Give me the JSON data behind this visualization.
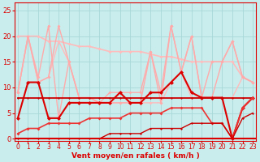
{
  "xlabel": "Vent moyen/en rafales ( km/h )",
  "xlim": [
    -0.3,
    23.3
  ],
  "ylim": [
    -0.5,
    26.5
  ],
  "yticks": [
    0,
    5,
    10,
    15,
    20,
    25
  ],
  "xticks": [
    0,
    1,
    2,
    3,
    4,
    5,
    6,
    7,
    8,
    9,
    10,
    11,
    12,
    13,
    14,
    15,
    16,
    17,
    18,
    19,
    20,
    21,
    22,
    23
  ],
  "bg_color": "#c9eded",
  "grid_color": "#a8d8d8",
  "axis_color": "#dd0000",
  "lines": [
    {
      "x": [
        0,
        1,
        2,
        3,
        4,
        5,
        6,
        7,
        8,
        9,
        10,
        11,
        12,
        13,
        14,
        15,
        16,
        17,
        18,
        19,
        20,
        21,
        22,
        23
      ],
      "y": [
        20,
        20,
        20,
        19,
        19,
        18.5,
        18,
        18,
        17.5,
        17,
        17,
        17,
        17,
        16.5,
        16,
        16,
        15.5,
        15,
        15,
        15,
        15,
        15,
        12,
        11
      ],
      "color": "#ffbbbb",
      "lw": 1.2,
      "ms": 2.0
    },
    {
      "x": [
        0,
        1,
        2,
        3,
        4,
        5,
        6,
        7,
        8,
        9,
        10,
        11,
        12,
        13,
        14,
        15,
        16,
        17,
        18,
        19,
        20,
        21,
        22,
        23
      ],
      "y": [
        9,
        20,
        11,
        12,
        19,
        15,
        8,
        8,
        7,
        7,
        7,
        7,
        7,
        7,
        7,
        11,
        13,
        8,
        8,
        8,
        8,
        8,
        12,
        11
      ],
      "color": "#ffbbbb",
      "lw": 1.0,
      "ms": 2.0
    },
    {
      "x": [
        0,
        1,
        2,
        3,
        4,
        5,
        6,
        7,
        8,
        9,
        10,
        11,
        12,
        13,
        14,
        15,
        16,
        17,
        18,
        19,
        20,
        21,
        22,
        23
      ],
      "y": [
        9,
        20,
        12,
        22,
        4,
        15,
        8,
        8,
        7,
        9,
        9,
        9,
        9,
        17,
        9,
        22,
        13,
        20,
        8,
        15,
        15,
        19,
        12,
        11
      ],
      "color": "#ffaaaa",
      "lw": 1.0,
      "ms": 2.0
    },
    {
      "x": [
        0,
        1,
        2,
        3,
        4,
        5,
        6,
        7,
        8,
        9,
        10,
        11,
        12,
        13,
        14,
        15,
        16,
        17,
        18,
        19,
        20,
        21,
        22,
        23
      ],
      "y": [
        9,
        20,
        11,
        12,
        22,
        15,
        8,
        8,
        7,
        7,
        7,
        7,
        7,
        17,
        7,
        22,
        13,
        20,
        8,
        8,
        15,
        19,
        12,
        11
      ],
      "color": "#ffaaaa",
      "lw": 1.0,
      "ms": 2.0
    },
    {
      "x": [
        0,
        1,
        2,
        3,
        4,
        5,
        6,
        7,
        8,
        9,
        10,
        11,
        12,
        13,
        14,
        15,
        16,
        17,
        18,
        19,
        20,
        21,
        22,
        23
      ],
      "y": [
        4,
        11,
        11,
        4,
        4,
        7,
        7,
        7,
        7,
        7,
        9,
        7,
        7,
        9,
        9,
        11,
        13,
        9,
        8,
        8,
        8,
        0,
        6,
        8
      ],
      "color": "#dd0000",
      "lw": 1.5,
      "ms": 2.5
    },
    {
      "x": [
        0,
        1,
        2,
        3,
        4,
        5,
        6,
        7,
        8,
        9,
        10,
        11,
        12,
        13,
        14,
        15,
        16,
        17,
        18,
        19,
        20,
        21,
        22,
        23
      ],
      "y": [
        8,
        8,
        8,
        8,
        8,
        8,
        8,
        8,
        8,
        8,
        8,
        8,
        8,
        8,
        8,
        8,
        8,
        8,
        8,
        8,
        8,
        8,
        8,
        8
      ],
      "color": "#cc0000",
      "lw": 1.3,
      "ms": 1.5
    },
    {
      "x": [
        0,
        1,
        2,
        3,
        4,
        5,
        6,
        7,
        8,
        9,
        10,
        11,
        12,
        13,
        14,
        15,
        16,
        17,
        18,
        19,
        20,
        21,
        22,
        23
      ],
      "y": [
        1,
        2,
        2,
        3,
        3,
        3,
        3,
        4,
        4,
        4,
        4,
        5,
        5,
        5,
        5,
        6,
        6,
        6,
        6,
        3,
        3,
        0,
        6,
        8
      ],
      "color": "#ee3333",
      "lw": 1.2,
      "ms": 2.0
    },
    {
      "x": [
        0,
        1,
        2,
        3,
        4,
        5,
        6,
        7,
        8,
        9,
        10,
        11,
        12,
        13,
        14,
        15,
        16,
        17,
        18,
        19,
        20,
        21,
        22,
        23
      ],
      "y": [
        0,
        0,
        0,
        0,
        0,
        0,
        0,
        0,
        0,
        1,
        1,
        1,
        1,
        2,
        2,
        2,
        2,
        3,
        3,
        3,
        3,
        0,
        4,
        5
      ],
      "color": "#cc0000",
      "lw": 1.0,
      "ms": 1.5
    }
  ]
}
